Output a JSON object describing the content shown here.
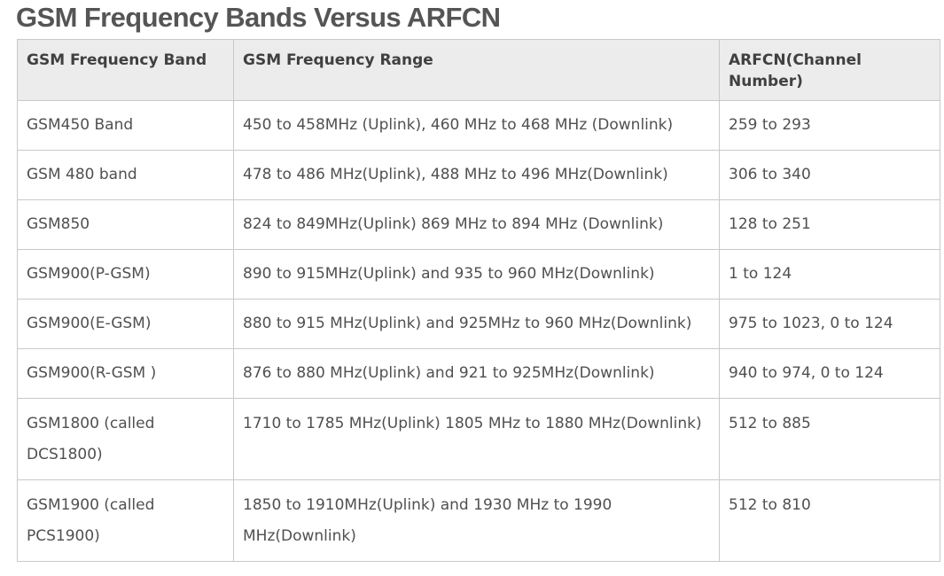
{
  "title": "GSM Frequency Bands Versus ARFCN",
  "table": {
    "headers": [
      "GSM Frequency Band",
      "GSM Frequency Range",
      "ARFCN(Channel Number)"
    ],
    "rows": [
      [
        "GSM450 Band",
        "450 to 458MHz (Uplink), 460 MHz to 468 MHz (Downlink)",
        "259 to 293"
      ],
      [
        "GSM 480 band",
        "478 to 486 MHz(Uplink), 488 MHz to 496 MHz(Downlink)",
        "306 to 340"
      ],
      [
        "GSM850",
        "824 to 849MHz(Uplink) 869 MHz to 894 MHz (Downlink)",
        "128 to 251"
      ],
      [
        "GSM900(P-GSM)",
        "890 to 915MHz(Uplink) and 935 to 960 MHz(Downlink)",
        "1 to 124"
      ],
      [
        "GSM900(E-GSM)",
        "880 to 915 MHz(Uplink) and 925MHz to 960 MHz(Downlink)",
        "975 to 1023, 0 to 124"
      ],
      [
        "GSM900(R-GSM )",
        "876 to 880 MHz(Uplink) and 921 to 925MHz(Downlink)",
        "940 to 974, 0 to 124"
      ],
      [
        "GSM1800 (called DCS1800)",
        "1710 to 1785 MHz(Uplink) 1805 MHz to 1880 MHz(Downlink)",
        "512 to 885"
      ],
      [
        "GSM1900 (called PCS1900)",
        "1850 to 1910MHz(Uplink) and 1930 MHz to 1990 MHz(Downlink)",
        "512 to 810"
      ]
    ]
  }
}
